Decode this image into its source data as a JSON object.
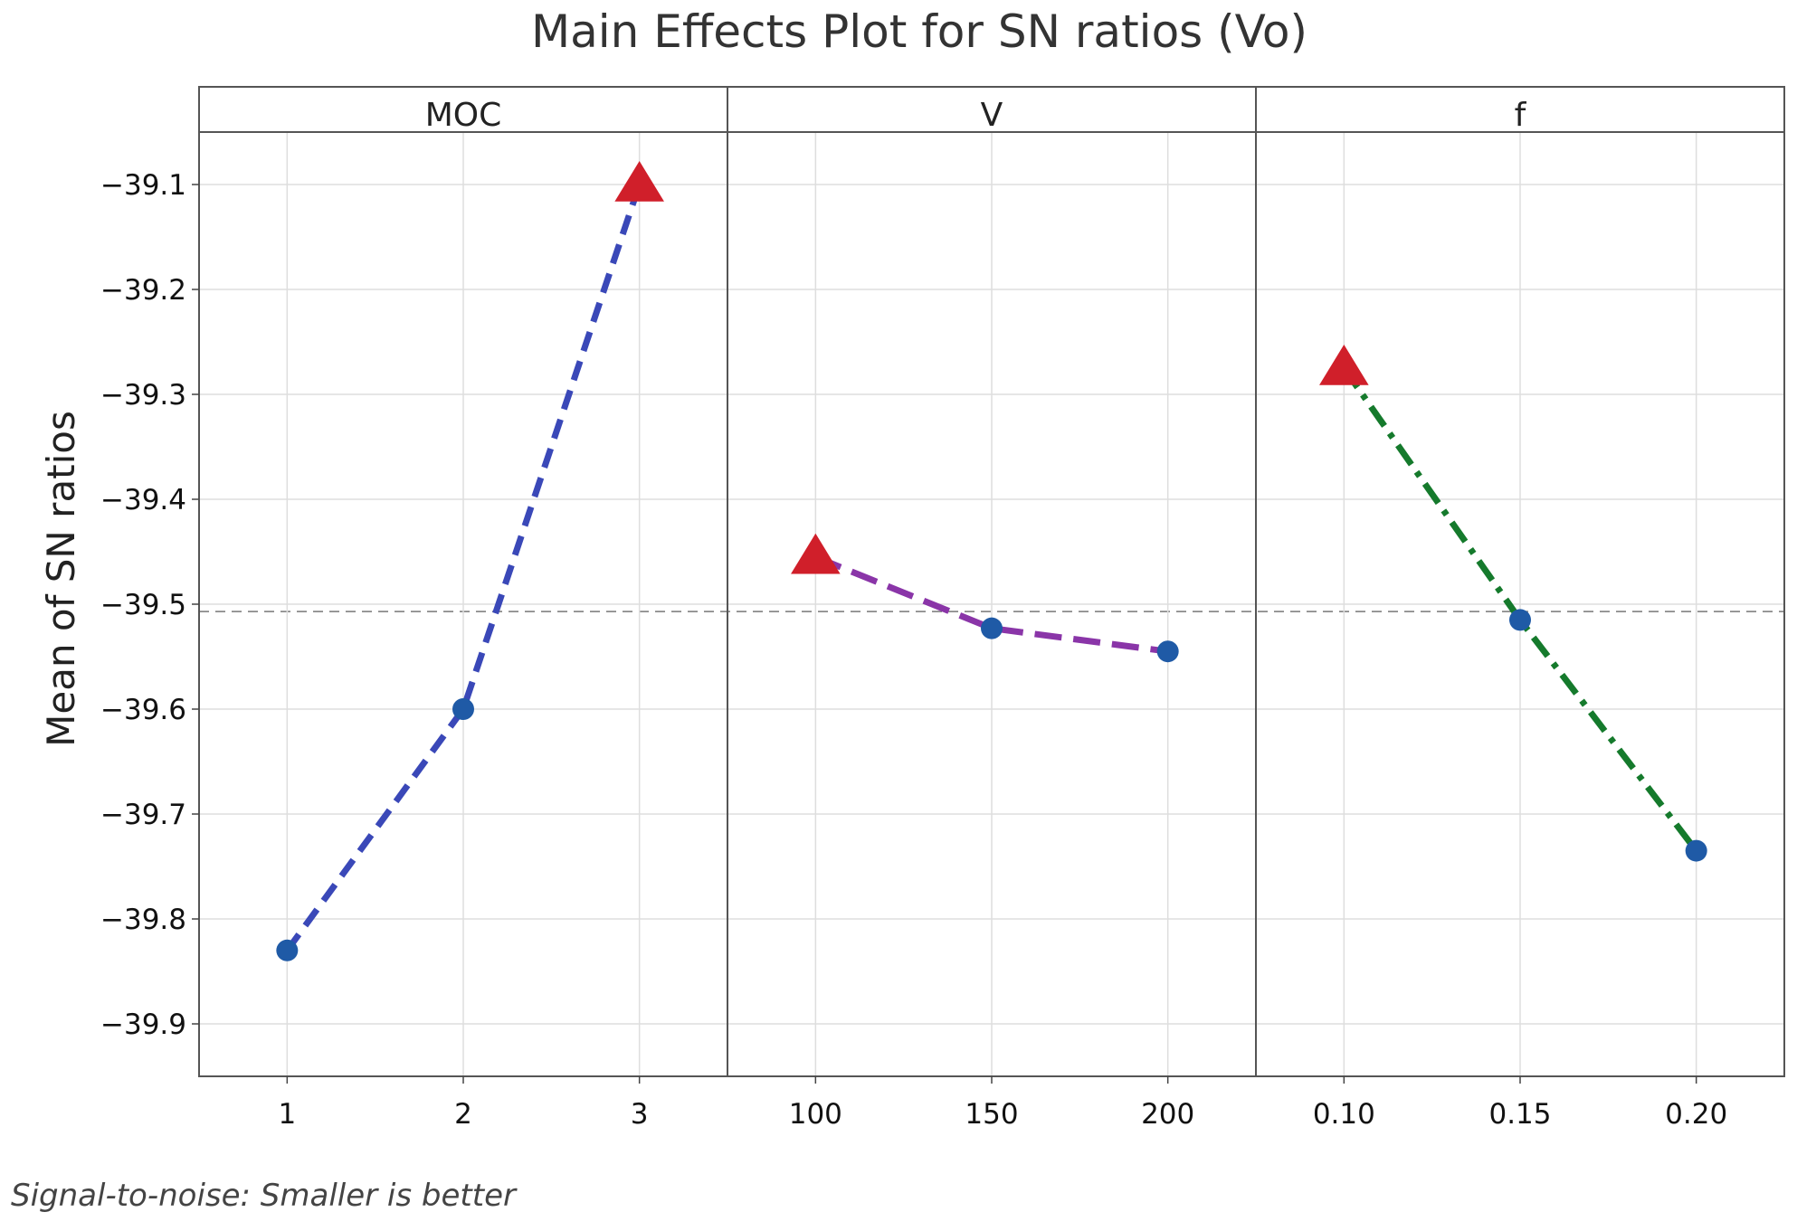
{
  "chart_data": {
    "type": "line",
    "title": "Main Effects Plot for SN ratios (Vo)",
    "ylabel": "Mean of SN ratios",
    "ylim": [
      -39.95,
      -39.05
    ],
    "yticks": [
      -39.9,
      -39.8,
      -39.7,
      -39.6,
      -39.5,
      -39.4,
      -39.3,
      -39.2,
      -39.1
    ],
    "ytick_labels": [
      "−39.9",
      "−39.8",
      "−39.7",
      "−39.6",
      "−39.5",
      "−39.4",
      "−39.3",
      "−39.2",
      "−39.1"
    ],
    "grid": true,
    "reference_line": -39.507,
    "footnote": "Signal-to-noise: Smaller is better",
    "panels": [
      {
        "name": "MOC",
        "categories": [
          "1",
          "2",
          "3"
        ],
        "values": [
          -39.83,
          -39.6,
          -39.1
        ],
        "best_index": 2,
        "color": "#3a48b8",
        "dash": "dashed"
      },
      {
        "name": "V",
        "categories": [
          "100",
          "150",
          "200"
        ],
        "values": [
          -39.455,
          -39.523,
          -39.545
        ],
        "best_index": 0,
        "color": "#8a35a8",
        "dash": "long-dashed"
      },
      {
        "name": "f",
        "categories": [
          "0.10",
          "0.15",
          "0.20"
        ],
        "values": [
          -39.275,
          -39.515,
          -39.735
        ],
        "best_index": 0,
        "color": "#157a2c",
        "dash": "dash-dot"
      }
    ],
    "marker_color": "#1f5aa6",
    "best_marker_color": "#d01f2a"
  }
}
